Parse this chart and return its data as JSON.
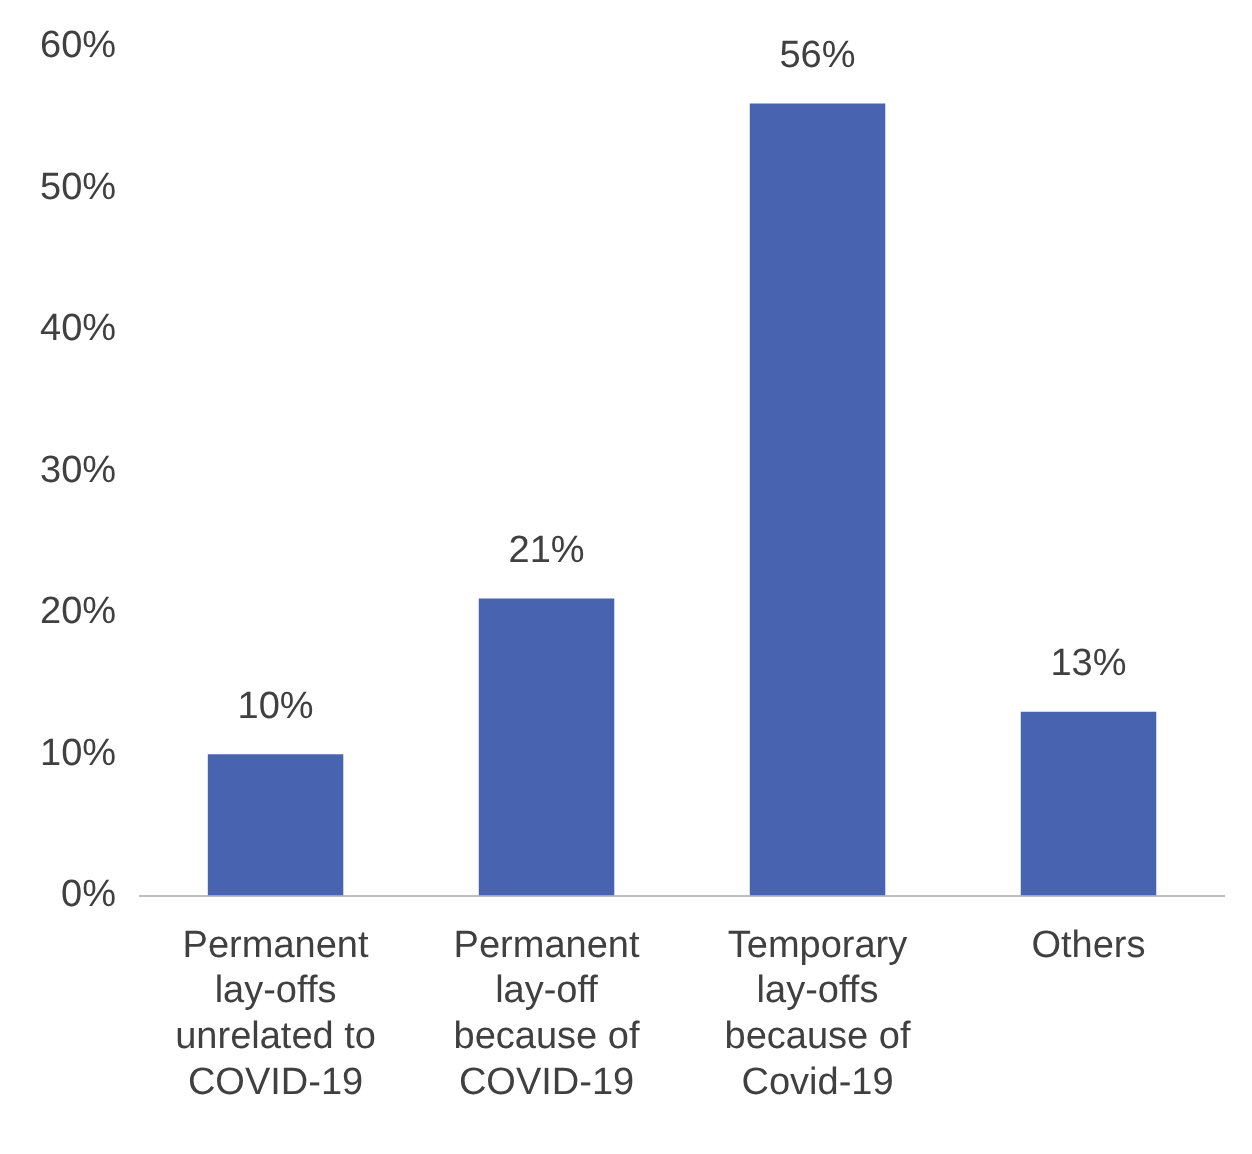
{
  "chart_data": {
    "type": "bar",
    "categories": [
      "Permanent lay-offs unrelated to COVID-19",
      "Permanent lay-off because of COVID-19",
      "Temporary lay-offs because of Covid-19",
      "Others"
    ],
    "values": [
      10,
      21,
      56,
      13
    ],
    "value_labels": [
      "10%",
      "21%",
      "56%",
      "13%"
    ],
    "color": "#4863b0",
    "ylim": [
      0,
      60
    ],
    "yticks": [
      {
        "value": 0,
        "label": "0%"
      },
      {
        "value": 10,
        "label": "10%"
      },
      {
        "value": 20,
        "label": "20%"
      },
      {
        "value": 30,
        "label": "30%"
      },
      {
        "value": 40,
        "label": "40%"
      },
      {
        "value": 50,
        "label": "50%"
      },
      {
        "value": 60,
        "label": "60%"
      }
    ],
    "grid": false,
    "legend": false
  }
}
